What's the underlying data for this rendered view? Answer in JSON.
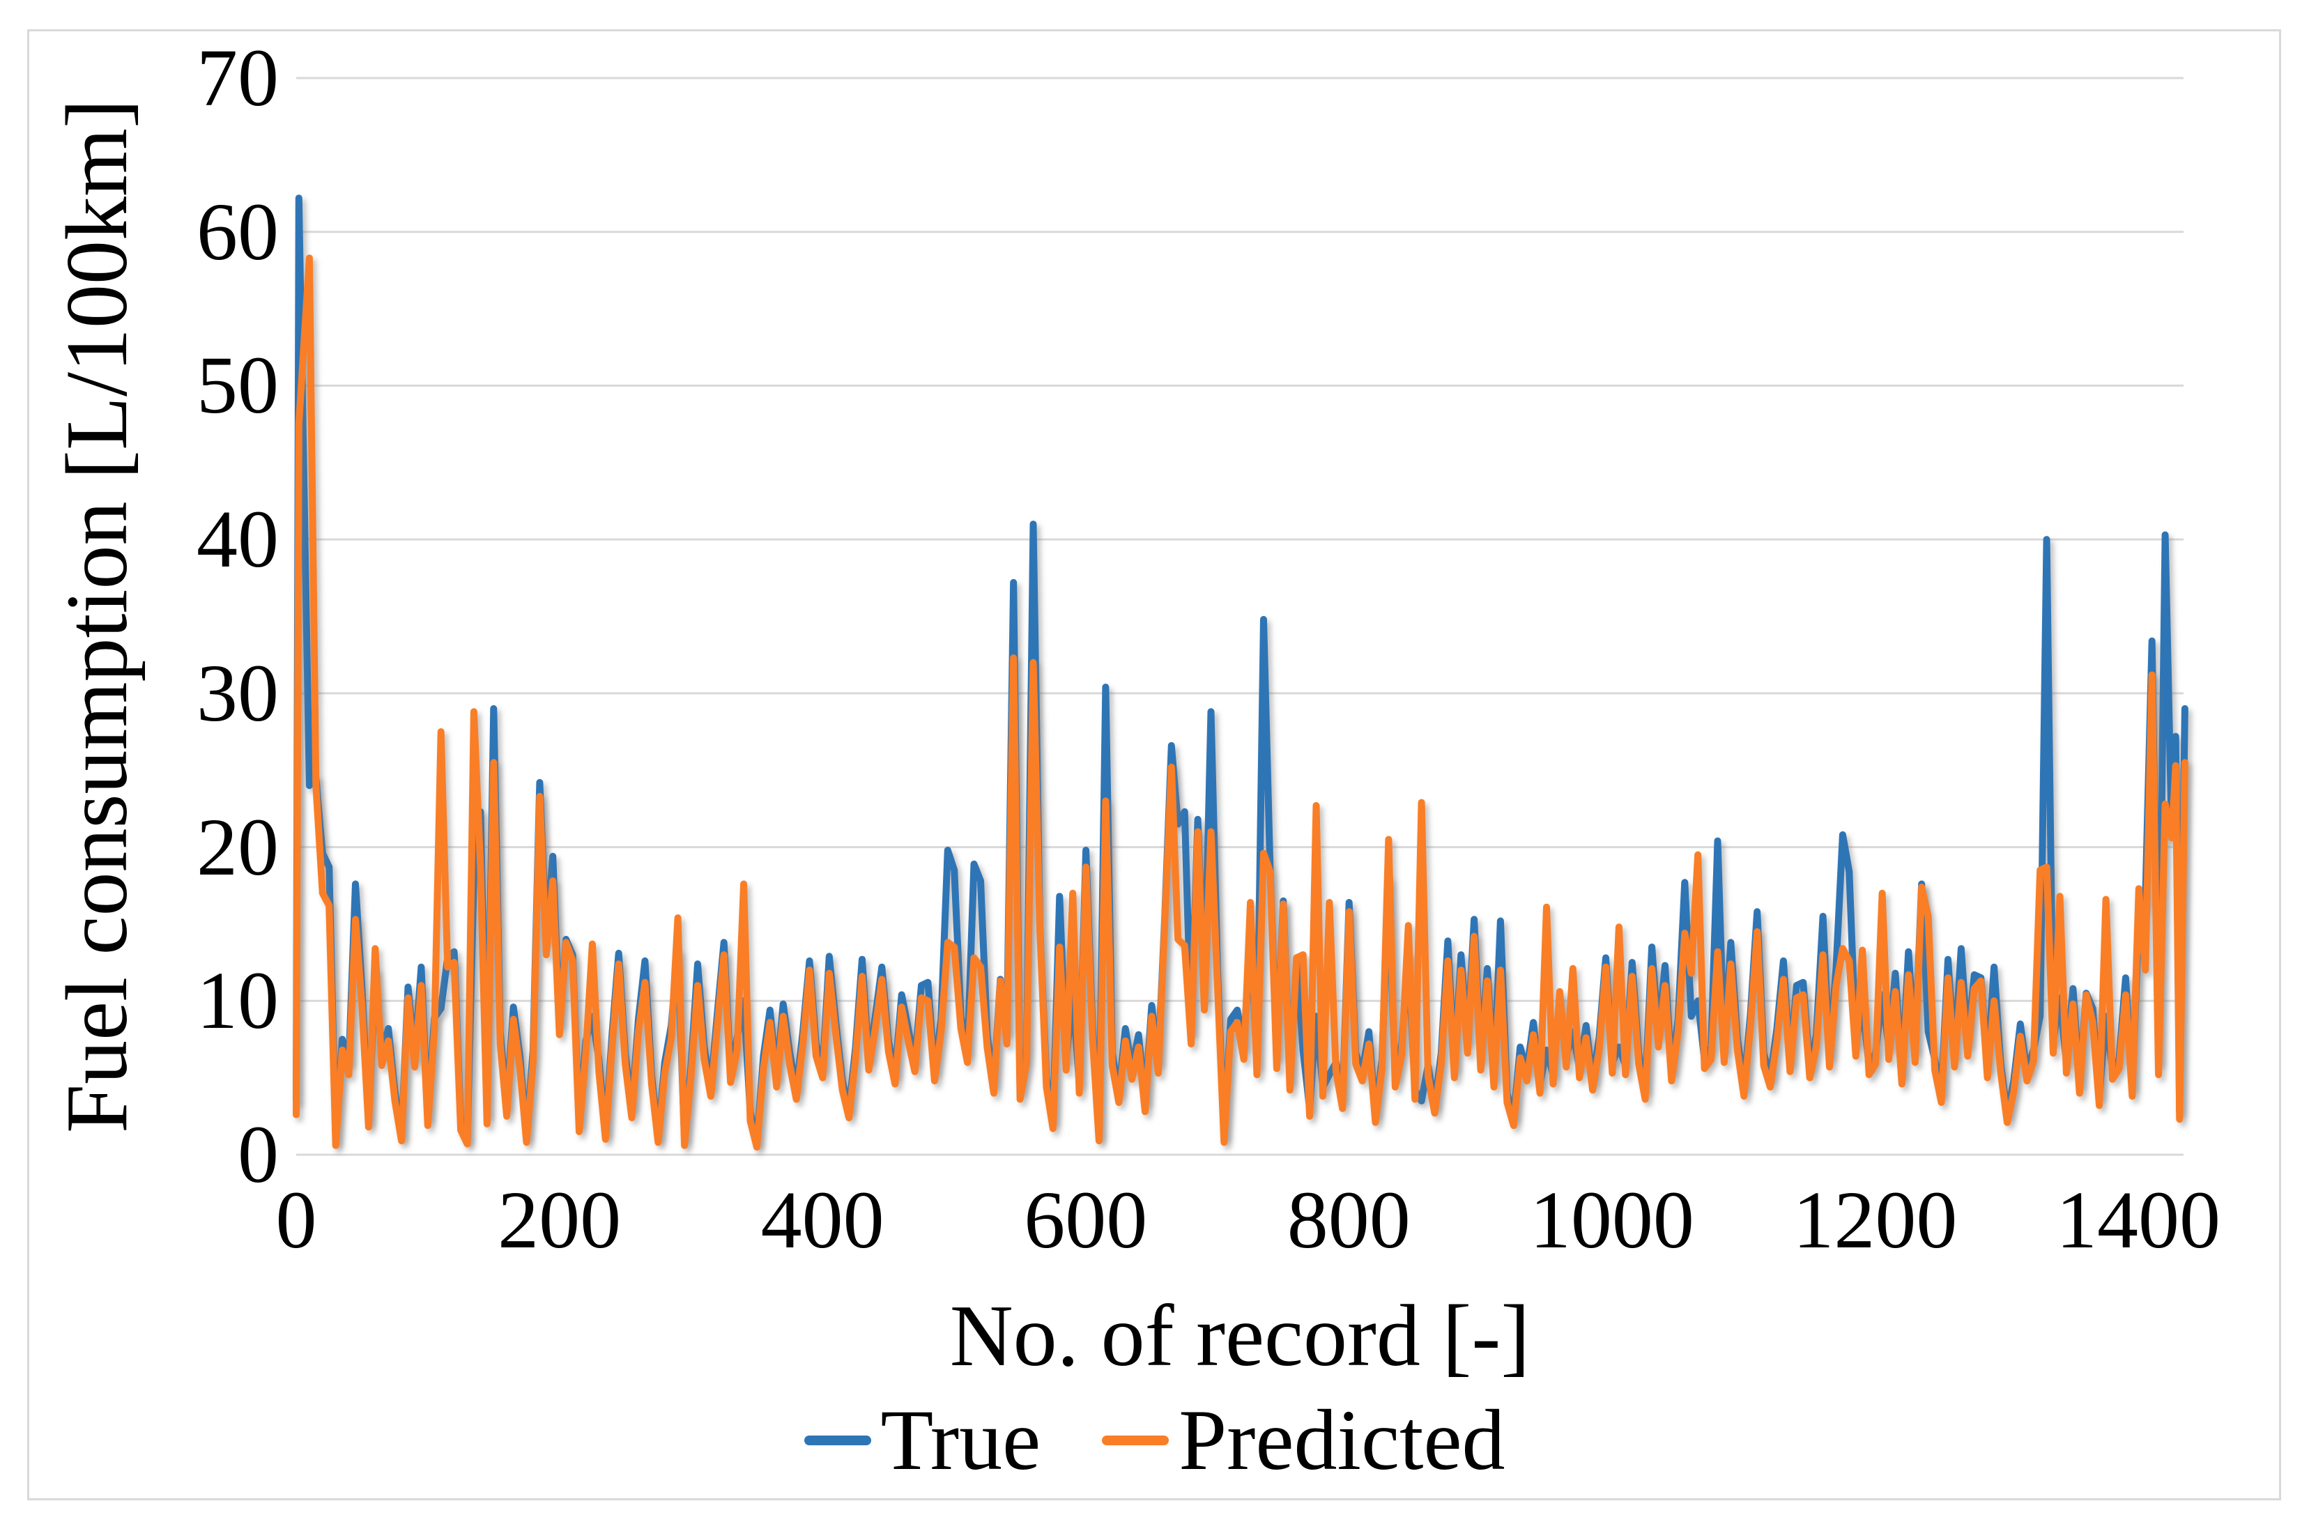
{
  "figure": {
    "background_color": "#FFFFFF",
    "frame_border_color": "#D9D9D9",
    "gridline_color": "#D9D9D9"
  },
  "chart_data": {
    "type": "line",
    "title": "",
    "xlabel": "No. of record [-]",
    "ylabel": "Fuel consumption [L/100km]",
    "xlim": [
      0,
      1434
    ],
    "ylim": [
      0,
      70
    ],
    "x_ticks": [
      0,
      200,
      400,
      600,
      800,
      1000,
      1200,
      1400
    ],
    "y_ticks": [
      0,
      10,
      20,
      30,
      40,
      50,
      60,
      70
    ],
    "grid": "horizontal",
    "legend_position": "bottom-center",
    "x": [
      0,
      2,
      10,
      15,
      20,
      25,
      30,
      35,
      40,
      45,
      50,
      55,
      60,
      65,
      70,
      75,
      80,
      85,
      90,
      95,
      100,
      105,
      110,
      115,
      120,
      125,
      130,
      135,
      140,
      145,
      150,
      155,
      160,
      165,
      170,
      175,
      180,
      185,
      190,
      195,
      200,
      205,
      210,
      215,
      220,
      225,
      230,
      235,
      240,
      245,
      250,
      255,
      260,
      265,
      270,
      275,
      280,
      285,
      290,
      295,
      300,
      305,
      310,
      315,
      320,
      325,
      330,
      335,
      340,
      345,
      350,
      355,
      360,
      365,
      370,
      375,
      380,
      385,
      390,
      395,
      400,
      405,
      410,
      415,
      420,
      425,
      430,
      435,
      440,
      445,
      450,
      455,
      460,
      465,
      470,
      475,
      480,
      485,
      490,
      495,
      500,
      505,
      510,
      515,
      520,
      525,
      530,
      535,
      540,
      545,
      550,
      555,
      560,
      565,
      570,
      575,
      580,
      585,
      590,
      595,
      600,
      605,
      610,
      615,
      620,
      625,
      630,
      635,
      640,
      645,
      650,
      655,
      660,
      665,
      670,
      675,
      680,
      685,
      690,
      695,
      700,
      705,
      710,
      715,
      720,
      725,
      730,
      735,
      740,
      745,
      750,
      755,
      760,
      765,
      770,
      775,
      780,
      785,
      790,
      795,
      800,
      805,
      810,
      815,
      820,
      825,
      830,
      835,
      840,
      845,
      850,
      855,
      860,
      865,
      870,
      875,
      880,
      885,
      890,
      895,
      900,
      905,
      910,
      915,
      920,
      925,
      930,
      935,
      940,
      945,
      950,
      955,
      960,
      965,
      970,
      975,
      980,
      985,
      990,
      995,
      1000,
      1005,
      1010,
      1015,
      1020,
      1025,
      1030,
      1035,
      1040,
      1045,
      1050,
      1055,
      1060,
      1065,
      1070,
      1075,
      1080,
      1085,
      1090,
      1095,
      1100,
      1105,
      1110,
      1115,
      1120,
      1125,
      1130,
      1135,
      1140,
      1145,
      1150,
      1155,
      1160,
      1165,
      1170,
      1175,
      1180,
      1185,
      1190,
      1195,
      1200,
      1205,
      1210,
      1215,
      1220,
      1225,
      1230,
      1235,
      1240,
      1245,
      1250,
      1255,
      1260,
      1265,
      1270,
      1275,
      1280,
      1285,
      1290,
      1295,
      1300,
      1305,
      1310,
      1315,
      1320,
      1325,
      1330,
      1335,
      1340,
      1345,
      1350,
      1355,
      1360,
      1365,
      1370,
      1375,
      1380,
      1385,
      1390,
      1395,
      1400,
      1405,
      1410,
      1415,
      1420,
      1425,
      1428,
      1431,
      1435
    ],
    "series": [
      {
        "name": "True",
        "color": "#2E75B6",
        "values": [
          3.5,
          62.2,
          24.0,
          24.5,
          19.6,
          18.7,
          0.9,
          7.5,
          6.0,
          17.6,
          10.8,
          2.2,
          12.0,
          6.5,
          8.2,
          4.1,
          1.2,
          10.9,
          6.3,
          12.2,
          2.4,
          8.9,
          9.5,
          12.8,
          13.2,
          2.1,
          1.0,
          18.0,
          22.3,
          2.6,
          29.0,
          8.0,
          3.1,
          9.6,
          6.4,
          1.2,
          6.8,
          24.2,
          14.0,
          19.4,
          8.5,
          14.0,
          13.0,
          2.0,
          7.4,
          9.0,
          6.2,
          1.4,
          7.8,
          13.1,
          6.6,
          3.0,
          8.8,
          12.6,
          5.2,
          1.1,
          6.0,
          8.4,
          13.2,
          1.0,
          5.8,
          12.4,
          7.0,
          4.4,
          9.2,
          13.8,
          5.4,
          7.6,
          10.0,
          2.8,
          0.8,
          6.4,
          9.4,
          5.0,
          9.8,
          6.6,
          4.2,
          8.0,
          12.6,
          7.2,
          5.6,
          12.9,
          8.6,
          4.8,
          2.9,
          7.0,
          12.7,
          6.2,
          9.0,
          12.2,
          7.4,
          5.2,
          10.4,
          8.2,
          6.0,
          11.0,
          11.2,
          5.4,
          8.8,
          19.8,
          18.5,
          9.0,
          6.6,
          18.9,
          17.8,
          7.8,
          4.6,
          11.4,
          8.0,
          37.2,
          4.2,
          6.8,
          41.0,
          14.8,
          5.0,
          2.2,
          16.8,
          6.2,
          10.4,
          4.6,
          19.8,
          8.4,
          1.2,
          30.4,
          6.6,
          4.0,
          8.2,
          5.6,
          7.8,
          3.4,
          9.7,
          6.0,
          15.6,
          26.6,
          21.5,
          22.3,
          8.0,
          21.8,
          10.2,
          28.8,
          12.0,
          1.2,
          8.8,
          9.4,
          7.0,
          14.6,
          5.8,
          34.8,
          18.6,
          6.4,
          16.5,
          4.8,
          12.6,
          6.8,
          3.0,
          9.0,
          4.4,
          5.2,
          6.0,
          3.6,
          16.4,
          6.6,
          5.4,
          8.0,
          2.6,
          6.2,
          17.9,
          5.0,
          7.2,
          13.0,
          4.2,
          3.5,
          5.8,
          3.2,
          6.6,
          13.9,
          5.6,
          13.0,
          7.4,
          15.3,
          6.2,
          12.1,
          5.0,
          15.2,
          4.0,
          2.4,
          7.0,
          5.4,
          8.6,
          4.6,
          6.8,
          5.2,
          10.2,
          6.4,
          8.0,
          5.6,
          8.4,
          4.8,
          7.6,
          12.8,
          6.0,
          7.0,
          5.8,
          12.5,
          6.6,
          4.2,
          13.5,
          7.8,
          12.3,
          5.4,
          8.8,
          17.7,
          9.0,
          10.0,
          6.2,
          7.0,
          20.4,
          6.8,
          13.8,
          7.6,
          4.4,
          9.2,
          15.8,
          6.6,
          5.0,
          8.2,
          12.6,
          6.0,
          11.0,
          11.2,
          5.6,
          7.8,
          15.5,
          6.4,
          12.2,
          20.8,
          18.4,
          7.2,
          9.8,
          5.8,
          6.6,
          10.4,
          7.0,
          11.8,
          5.2,
          13.2,
          6.8,
          17.6,
          8.0,
          6.2,
          4.0,
          12.7,
          6.4,
          13.4,
          7.2,
          11.7,
          11.5,
          5.6,
          12.2,
          6.0,
          2.6,
          4.8,
          8.5,
          5.4,
          6.8,
          9.0,
          40.0,
          7.4,
          10.2,
          6.0,
          10.8,
          4.6,
          10.5,
          9.5,
          3.8,
          9.0,
          5.6,
          6.2,
          11.5,
          4.4,
          15.2,
          16.5,
          33.4,
          6.0,
          40.3,
          20.8,
          27.2,
          2.8,
          29.0
        ]
      },
      {
        "name": "Predicted",
        "color": "#F97E27",
        "values": [
          2.6,
          47.5,
          58.3,
          24.0,
          17.0,
          16.2,
          0.6,
          6.8,
          5.2,
          15.3,
          9.6,
          1.8,
          13.4,
          5.8,
          7.4,
          3.5,
          0.9,
          10.2,
          5.7,
          11.0,
          1.9,
          8.1,
          27.5,
          12.2,
          12.5,
          1.6,
          0.7,
          28.8,
          18.7,
          2.0,
          25.5,
          7.2,
          2.5,
          8.8,
          5.6,
          0.8,
          6.0,
          23.3,
          13.0,
          17.8,
          7.8,
          13.8,
          12.6,
          1.5,
          6.6,
          13.7,
          5.4,
          1.0,
          7.0,
          12.4,
          5.9,
          2.4,
          8.0,
          11.2,
          4.6,
          0.8,
          5.3,
          7.6,
          15.4,
          0.6,
          5.1,
          11.0,
          6.2,
          3.8,
          8.4,
          13.0,
          4.7,
          6.8,
          17.6,
          2.2,
          0.5,
          5.6,
          8.6,
          4.4,
          9.0,
          5.8,
          3.6,
          7.2,
          12.0,
          6.4,
          5.0,
          11.8,
          7.8,
          4.2,
          2.4,
          6.3,
          11.6,
          5.5,
          8.2,
          11.4,
          6.7,
          4.6,
          9.6,
          7.4,
          5.4,
          10.2,
          10.0,
          4.8,
          8.0,
          13.8,
          13.5,
          8.2,
          6.0,
          12.8,
          12.2,
          7.0,
          4.0,
          11.3,
          7.2,
          32.3,
          3.6,
          6.0,
          32.0,
          14.7,
          4.4,
          1.7,
          13.5,
          5.5,
          17.0,
          4.0,
          18.7,
          7.6,
          0.9,
          23.0,
          5.8,
          3.4,
          7.4,
          4.9,
          7.0,
          2.8,
          9.0,
          5.3,
          15.3,
          25.2,
          14.0,
          13.6,
          7.2,
          21.0,
          9.4,
          21.0,
          11.0,
          0.8,
          8.0,
          8.6,
          6.2,
          16.4,
          5.2,
          19.6,
          18.4,
          5.6,
          16.3,
          4.2,
          12.8,
          13.0,
          2.5,
          22.7,
          3.8,
          16.4,
          5.4,
          3.0,
          15.8,
          5.9,
          4.8,
          7.2,
          2.1,
          5.6,
          20.5,
          4.4,
          6.5,
          14.9,
          3.6,
          22.9,
          5.1,
          2.7,
          5.9,
          12.6,
          5.0,
          12.0,
          6.6,
          14.2,
          5.5,
          11.3,
          4.4,
          12.0,
          3.4,
          1.9,
          6.3,
          4.8,
          7.8,
          4.0,
          16.1,
          4.6,
          10.6,
          5.7,
          12.1,
          5.0,
          7.6,
          4.2,
          6.8,
          12.2,
          5.3,
          14.8,
          5.2,
          11.6,
          5.9,
          3.6,
          12.1,
          7.0,
          11.0,
          4.8,
          8.0,
          14.4,
          11.8,
          19.5,
          5.6,
          6.2,
          13.2,
          6.0,
          12.4,
          6.8,
          3.8,
          8.4,
          14.5,
          5.8,
          4.4,
          7.4,
          11.4,
          5.4,
          10.2,
          10.4,
          5.0,
          7.0,
          13.0,
          5.7,
          11.0,
          13.4,
          12.6,
          6.4,
          13.3,
          5.2,
          5.9,
          17.0,
          6.2,
          10.6,
          4.6,
          11.7,
          6.0,
          17.4,
          15.5,
          5.5,
          3.4,
          11.5,
          5.7,
          11.2,
          6.4,
          10.8,
          11.3,
          5.0,
          10.0,
          5.4,
          2.1,
          4.1,
          7.7,
          4.8,
          6.1,
          18.5,
          18.7,
          6.6,
          16.8,
          5.3,
          9.8,
          4.0,
          10.4,
          8.6,
          3.2,
          16.6,
          4.9,
          5.6,
          10.4,
          3.8,
          17.3,
          12.0,
          31.2,
          5.2,
          22.8,
          20.6,
          25.3,
          2.3,
          25.5
        ]
      }
    ]
  }
}
